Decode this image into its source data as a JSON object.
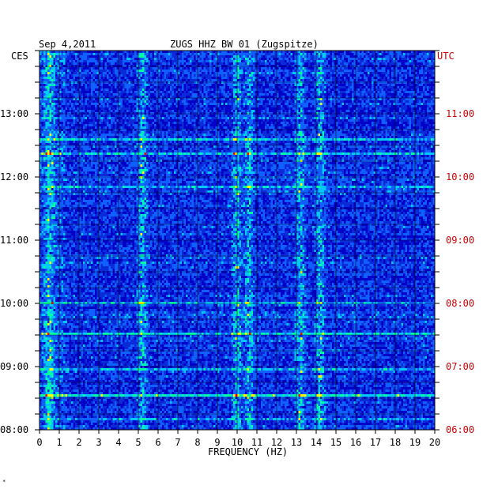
{
  "header": {
    "date": "Sep 4,2011",
    "station": "ZUGS HHZ BW 01 (Zugspitze)"
  },
  "chart_data": {
    "type": "heatmap",
    "title": "ZUGS HHZ BW 01 (Zugspitze)",
    "date": "Sep 4,2011",
    "xlabel": "FREQUENCY (HZ)",
    "xlim": [
      0,
      20
    ],
    "x_ticks": [
      "0",
      "1",
      "2",
      "3",
      "4",
      "5",
      "6",
      "7",
      "8",
      "9",
      "10",
      "11",
      "12",
      "13",
      "14",
      "15",
      "16",
      "17",
      "18",
      "19",
      "20"
    ],
    "left_axis_label": "CES",
    "right_axis_label": "UTC",
    "left_ticks": [
      "08:00",
      "09:00",
      "10:00",
      "11:00",
      "12:00",
      "13:00"
    ],
    "right_ticks": [
      "06:00",
      "07:00",
      "08:00",
      "09:00",
      "10:00",
      "11:00"
    ],
    "time_range_local": [
      "08:00",
      "14:00"
    ],
    "grid": true,
    "colors": {
      "background": "#0000c8",
      "low": "#0a2cd8",
      "mid": "#00c8ff",
      "high": "#ffff00",
      "peak": "#ff0000",
      "right_axis": "#cc0000"
    },
    "strong_bands_hz": [
      0.5,
      5.2,
      10.0,
      10.6,
      13.2,
      14.2
    ]
  },
  "footer": {
    "mark": "*"
  }
}
